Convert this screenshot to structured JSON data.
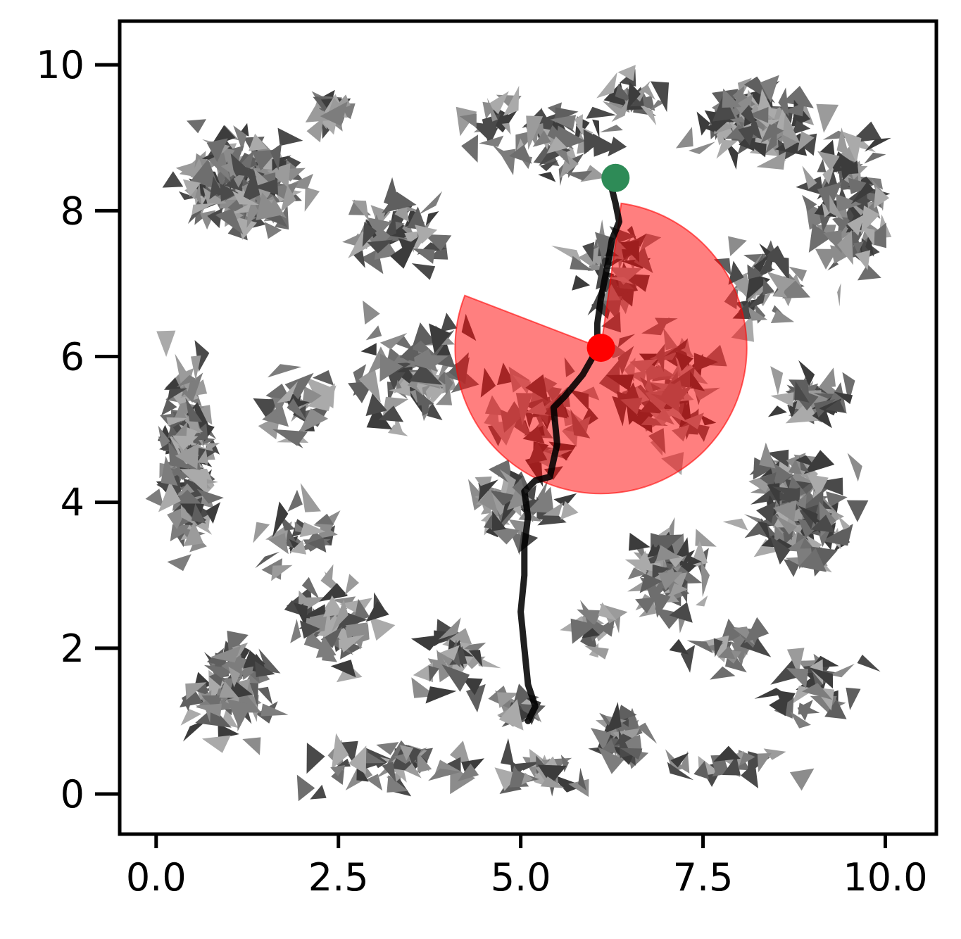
{
  "chart_data": {
    "type": "scatter",
    "title": "",
    "xlabel": "",
    "ylabel": "",
    "xlim": [
      -0.5,
      10.7
    ],
    "ylim": [
      -0.55,
      10.6
    ],
    "grid": false,
    "legend": "none",
    "xticks": [
      0,
      2.5,
      5,
      7.5,
      10
    ],
    "xtick_labels": [
      "0.0",
      "2.5",
      "5.0",
      "7.5",
      "10.0"
    ],
    "yticks": [
      0,
      2,
      4,
      6,
      8,
      10
    ],
    "ytick_labels": [
      "0",
      "2",
      "4",
      "6",
      "8",
      "10"
    ],
    "obstacle_clusters": [
      {
        "cx": 1.2,
        "cy": 8.4,
        "rx": 1.1,
        "ry": 0.9,
        "count": 170
      },
      {
        "cx": 2.4,
        "cy": 9.4,
        "rx": 0.4,
        "ry": 0.4,
        "count": 25
      },
      {
        "cx": 0.45,
        "cy": 4.7,
        "rx": 0.5,
        "ry": 1.7,
        "count": 150
      },
      {
        "cx": 1.0,
        "cy": 1.4,
        "rx": 0.7,
        "ry": 0.9,
        "count": 80
      },
      {
        "cx": 2.5,
        "cy": 2.3,
        "rx": 0.7,
        "ry": 0.9,
        "count": 55
      },
      {
        "cx": 8.2,
        "cy": 9.2,
        "rx": 1.1,
        "ry": 0.7,
        "count": 100
      },
      {
        "cx": 9.5,
        "cy": 8.0,
        "rx": 0.7,
        "ry": 1.5,
        "count": 80
      },
      {
        "cx": 8.8,
        "cy": 3.9,
        "rx": 0.9,
        "ry": 1.0,
        "count": 130
      },
      {
        "cx": 9.0,
        "cy": 5.4,
        "rx": 0.7,
        "ry": 0.5,
        "count": 40
      },
      {
        "cx": 7.0,
        "cy": 3.0,
        "rx": 0.6,
        "ry": 0.9,
        "count": 80
      },
      {
        "cx": 6.4,
        "cy": 0.8,
        "rx": 0.4,
        "ry": 0.4,
        "count": 40
      },
      {
        "cx": 5.0,
        "cy": 1.2,
        "rx": 0.4,
        "ry": 0.3,
        "count": 20
      },
      {
        "cx": 4.9,
        "cy": 4.0,
        "rx": 0.9,
        "ry": 0.8,
        "count": 55
      },
      {
        "cx": 3.7,
        "cy": 5.8,
        "rx": 1.4,
        "ry": 1.1,
        "count": 70
      },
      {
        "cx": 3.3,
        "cy": 7.7,
        "rx": 1.0,
        "ry": 0.7,
        "count": 45
      },
      {
        "cx": 5.5,
        "cy": 8.9,
        "rx": 1.4,
        "ry": 0.8,
        "count": 45
      },
      {
        "cx": 6.3,
        "cy": 7.3,
        "rx": 0.9,
        "ry": 0.8,
        "count": 45
      },
      {
        "cx": 7.0,
        "cy": 5.6,
        "rx": 1.0,
        "ry": 1.3,
        "count": 80
      },
      {
        "cx": 5.3,
        "cy": 5.2,
        "rx": 0.9,
        "ry": 0.9,
        "count": 45
      },
      {
        "cx": 8.3,
        "cy": 7.0,
        "rx": 0.7,
        "ry": 1.0,
        "count": 40
      },
      {
        "cx": 7.8,
        "cy": 2.0,
        "rx": 0.7,
        "ry": 0.4,
        "count": 20
      },
      {
        "cx": 9.0,
        "cy": 1.5,
        "rx": 0.9,
        "ry": 0.9,
        "count": 30
      },
      {
        "cx": 8.0,
        "cy": 0.4,
        "rx": 1.2,
        "ry": 0.4,
        "count": 20
      },
      {
        "cx": 3.2,
        "cy": 0.4,
        "rx": 1.6,
        "ry": 0.5,
        "count": 45
      },
      {
        "cx": 5.3,
        "cy": 0.3,
        "rx": 0.8,
        "ry": 0.3,
        "count": 25
      },
      {
        "cx": 4.0,
        "cy": 1.8,
        "rx": 0.7,
        "ry": 0.7,
        "count": 30
      },
      {
        "cx": 6.0,
        "cy": 2.3,
        "rx": 0.5,
        "ry": 0.5,
        "count": 15
      },
      {
        "cx": 1.9,
        "cy": 3.6,
        "rx": 0.7,
        "ry": 0.7,
        "count": 25
      },
      {
        "cx": 2.0,
        "cy": 5.3,
        "rx": 0.6,
        "ry": 0.7,
        "count": 25
      },
      {
        "cx": 4.6,
        "cy": 9.3,
        "rx": 0.6,
        "ry": 0.5,
        "count": 15
      },
      {
        "cx": 6.6,
        "cy": 9.6,
        "rx": 0.6,
        "ry": 0.5,
        "count": 20
      }
    ],
    "sector": {
      "center": [
        6.1,
        6.12
      ],
      "radius": 2.0,
      "start_angle_deg": 82,
      "end_angle_deg": 159,
      "color": "#ff0000",
      "fill_opacity": 0.5
    },
    "path": {
      "color": "#000000",
      "points": [
        [
          5.1,
          1.0
        ],
        [
          5.2,
          1.2
        ],
        [
          5.1,
          1.5
        ],
        [
          5.05,
          2.0
        ],
        [
          5.0,
          2.5
        ],
        [
          5.05,
          3.0
        ],
        [
          5.05,
          3.4
        ],
        [
          5.1,
          3.8
        ],
        [
          5.05,
          4.15
        ],
        [
          5.2,
          4.3
        ],
        [
          5.4,
          4.35
        ],
        [
          5.5,
          4.8
        ],
        [
          5.45,
          5.3
        ],
        [
          5.6,
          5.45
        ],
        [
          5.85,
          5.75
        ],
        [
          6.05,
          6.1
        ],
        [
          6.05,
          6.45
        ],
        [
          6.1,
          6.8
        ],
        [
          6.2,
          7.3
        ],
        [
          6.25,
          7.6
        ],
        [
          6.35,
          7.85
        ],
        [
          6.3,
          8.1
        ],
        [
          6.25,
          8.3
        ],
        [
          6.3,
          8.45
        ]
      ]
    },
    "start_point": {
      "x": 6.3,
      "y": 8.45,
      "color": "#2e8b57"
    },
    "current_point": {
      "x": 6.1,
      "y": 6.12,
      "color": "#ff0000"
    },
    "obstacle_colors": [
      "#4a4a4a",
      "#5f5f5f",
      "#6e6e6e",
      "#7d7d7d",
      "#8c8c8c",
      "#9b9b9b",
      "#aaaaaa",
      "#3c3c3c"
    ]
  }
}
